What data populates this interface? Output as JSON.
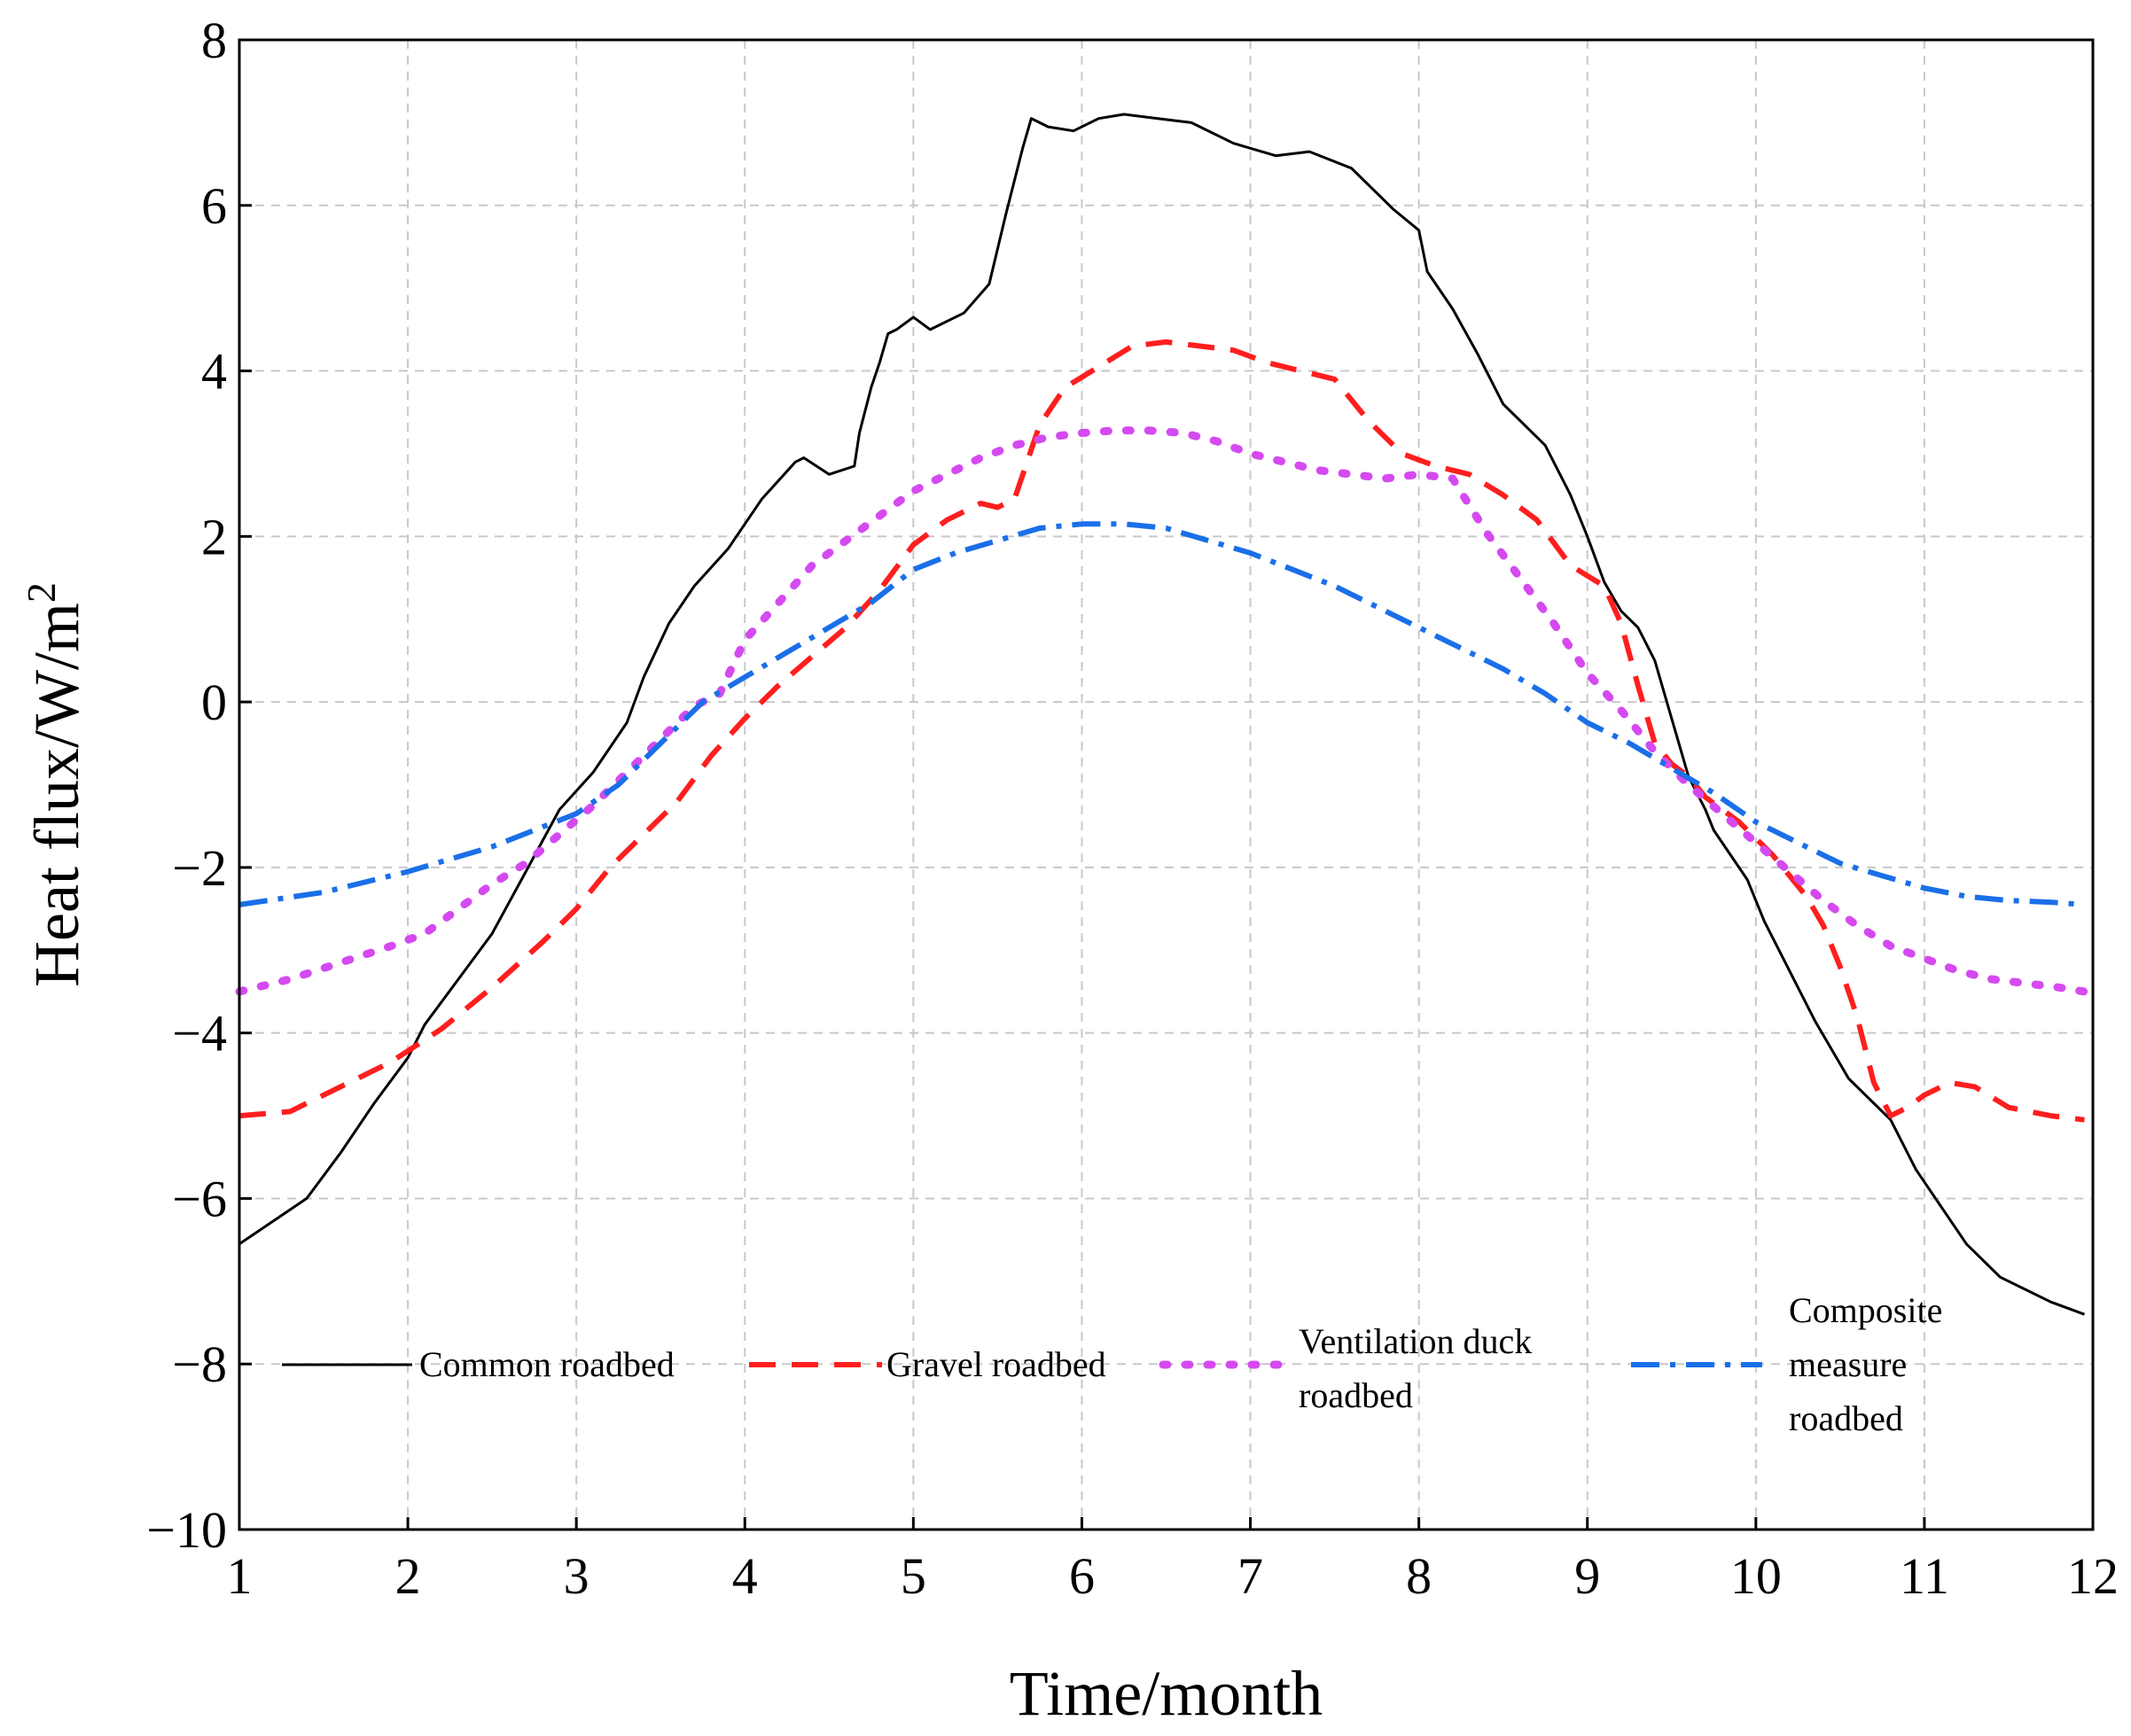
{
  "chart_data": {
    "type": "line",
    "title": "",
    "xlabel": "Time/month",
    "ylabel": "Heat flux/W/m",
    "ylabel_superscript": "2",
    "xlim": [
      1,
      12
    ],
    "ylim": [
      -10,
      8
    ],
    "xticks": [
      "1",
      "2",
      "3",
      "4",
      "5",
      "6",
      "7",
      "8",
      "9",
      "10",
      "11",
      "12"
    ],
    "yticks": [
      "−10",
      "−8",
      "−6",
      "−4",
      "−2",
      "0",
      "2",
      "4",
      "6",
      "8"
    ],
    "grid": true,
    "legend_position": "bottom",
    "series": [
      {
        "name": "Common roadbed",
        "color": "#000000",
        "style": "solid",
        "x": [
          1.0,
          1.4,
          1.6,
          1.8,
          2.0,
          2.1,
          2.3,
          2.5,
          2.7,
          2.9,
          3.1,
          3.3,
          3.4,
          3.55,
          3.7,
          3.9,
          4.1,
          4.3,
          4.35,
          4.5,
          4.65,
          4.68,
          4.75,
          4.8,
          4.85,
          4.9,
          5.0,
          5.1,
          5.3,
          5.45,
          5.55,
          5.65,
          5.7,
          5.75,
          5.8,
          5.95,
          6.1,
          6.25,
          6.45,
          6.65,
          6.9,
          7.15,
          7.35,
          7.6,
          7.85,
          8.0,
          8.05,
          8.2,
          8.35,
          8.5,
          8.75,
          8.9,
          9.0,
          9.1,
          9.2,
          9.3,
          9.4,
          9.5,
          9.6,
          9.7,
          9.75,
          9.95,
          10.05,
          10.15,
          10.35,
          10.55,
          10.8,
          10.95,
          11.1,
          11.25,
          11.45,
          11.75,
          11.95
        ],
        "y": [
          -6.55,
          -6.0,
          -5.45,
          -4.85,
          -4.3,
          -3.9,
          -3.35,
          -2.8,
          -2.05,
          -1.3,
          -0.85,
          -0.25,
          0.3,
          0.95,
          1.4,
          1.85,
          2.45,
          2.9,
          2.95,
          2.75,
          2.85,
          3.25,
          3.8,
          4.1,
          4.45,
          4.5,
          4.65,
          4.5,
          4.7,
          5.05,
          5.9,
          6.7,
          7.05,
          7.0,
          6.95,
          6.9,
          7.05,
          7.1,
          7.05,
          7.0,
          6.75,
          6.6,
          6.65,
          6.45,
          5.95,
          5.7,
          5.2,
          4.75,
          4.2,
          3.6,
          3.1,
          2.5,
          2.0,
          1.45,
          1.1,
          0.9,
          0.5,
          -0.2,
          -0.9,
          -1.3,
          -1.55,
          -2.15,
          -2.65,
          -3.05,
          -3.85,
          -4.55,
          -5.05,
          -5.65,
          -6.1,
          -6.55,
          -6.95,
          -7.25,
          -7.4
        ]
      },
      {
        "name": "Gravel roadbed",
        "color": "#ff1e1e",
        "style": "dashed",
        "x": [
          1.0,
          1.3,
          1.6,
          1.9,
          2.2,
          2.5,
          2.8,
          3.0,
          3.2,
          3.4,
          3.6,
          3.8,
          4.0,
          4.2,
          4.4,
          4.6,
          4.8,
          5.0,
          5.2,
          5.4,
          5.5,
          5.6,
          5.75,
          5.9,
          6.1,
          6.3,
          6.5,
          6.7,
          6.9,
          7.1,
          7.3,
          7.5,
          7.7,
          7.9,
          8.1,
          8.3,
          8.5,
          8.7,
          8.9,
          9.1,
          9.2,
          9.3,
          9.4,
          9.5,
          9.6,
          9.7,
          9.8,
          9.9,
          10.0,
          10.1,
          10.2,
          10.3,
          10.4,
          10.5,
          10.6,
          10.7,
          10.8,
          10.9,
          11.0,
          11.15,
          11.3,
          11.5,
          11.75,
          11.95
        ],
        "y": [
          -5.0,
          -4.95,
          -4.65,
          -4.35,
          -3.95,
          -3.45,
          -2.9,
          -2.5,
          -2.0,
          -1.6,
          -1.2,
          -0.65,
          -0.2,
          0.2,
          0.55,
          0.9,
          1.35,
          1.9,
          2.2,
          2.4,
          2.35,
          2.45,
          3.35,
          3.8,
          4.05,
          4.3,
          4.35,
          4.3,
          4.25,
          4.1,
          4.0,
          3.9,
          3.4,
          3.0,
          2.85,
          2.75,
          2.5,
          2.2,
          1.65,
          1.4,
          0.95,
          0.2,
          -0.5,
          -0.75,
          -0.9,
          -1.15,
          -1.3,
          -1.45,
          -1.65,
          -1.85,
          -2.1,
          -2.35,
          -2.7,
          -3.2,
          -3.8,
          -4.6,
          -5.0,
          -4.9,
          -4.75,
          -4.6,
          -4.65,
          -4.9,
          -5.0,
          -5.05
        ]
      },
      {
        "name": "Ventilation duck roadbed",
        "color": "#d44af0",
        "style": "dotted",
        "x": [
          1.0,
          1.3,
          1.6,
          1.9,
          2.1,
          2.3,
          2.5,
          2.7,
          2.9,
          3.1,
          3.3,
          3.5,
          3.7,
          3.85,
          4.0,
          4.2,
          4.4,
          4.6,
          4.8,
          5.0,
          5.2,
          5.4,
          5.6,
          5.8,
          6.0,
          6.2,
          6.4,
          6.6,
          6.8,
          7.0,
          7.2,
          7.4,
          7.6,
          7.8,
          8.0,
          8.2,
          8.4,
          8.6,
          8.8,
          9.0,
          9.2,
          9.4,
          9.6,
          9.8,
          10.0,
          10.2,
          10.4,
          10.6,
          10.8,
          11.0,
          11.2,
          11.4,
          11.6,
          11.8,
          11.95
        ],
        "y": [
          -3.5,
          -3.35,
          -3.15,
          -2.95,
          -2.8,
          -2.5,
          -2.2,
          -1.95,
          -1.6,
          -1.25,
          -0.85,
          -0.45,
          -0.05,
          0.1,
          0.75,
          1.2,
          1.65,
          1.95,
          2.25,
          2.55,
          2.75,
          2.95,
          3.1,
          3.2,
          3.25,
          3.28,
          3.28,
          3.25,
          3.15,
          3.0,
          2.9,
          2.8,
          2.75,
          2.7,
          2.75,
          2.7,
          2.05,
          1.5,
          0.95,
          0.35,
          -0.1,
          -0.6,
          -1.0,
          -1.35,
          -1.7,
          -2.05,
          -2.4,
          -2.7,
          -2.95,
          -3.1,
          -3.25,
          -3.35,
          -3.4,
          -3.45,
          -3.5
        ]
      },
      {
        "name": "Composite measure roadbed",
        "color": "#1a6fe8",
        "style": "dashdot",
        "x": [
          1.0,
          1.5,
          2.0,
          2.5,
          3.0,
          3.25,
          3.5,
          3.75,
          4.0,
          4.25,
          4.5,
          4.75,
          5.0,
          5.25,
          5.5,
          5.75,
          6.0,
          6.25,
          6.5,
          6.75,
          7.0,
          7.25,
          7.5,
          7.75,
          8.0,
          8.25,
          8.5,
          8.75,
          9.0,
          9.25,
          9.5,
          9.75,
          10.0,
          10.25,
          10.5,
          10.75,
          11.0,
          11.25,
          11.5,
          11.75,
          11.95
        ],
        "y": [
          -2.45,
          -2.3,
          -2.05,
          -1.75,
          -1.35,
          -1.0,
          -0.5,
          0.0,
          0.3,
          0.6,
          0.9,
          1.2,
          1.6,
          1.8,
          1.95,
          2.1,
          2.15,
          2.15,
          2.1,
          1.95,
          1.8,
          1.6,
          1.4,
          1.15,
          0.9,
          0.65,
          0.4,
          0.1,
          -0.25,
          -0.5,
          -0.8,
          -1.1,
          -1.45,
          -1.7,
          -1.95,
          -2.1,
          -2.25,
          -2.35,
          -2.4,
          -2.42,
          -2.45
        ]
      }
    ]
  }
}
